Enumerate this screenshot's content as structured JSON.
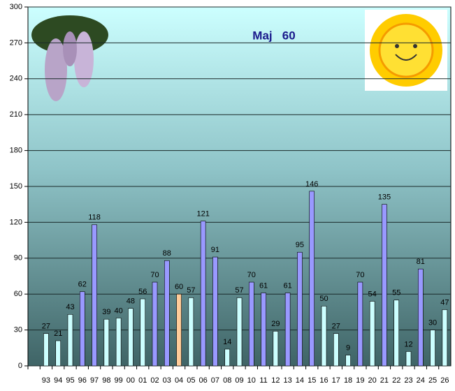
{
  "chart_data": {
    "type": "bar",
    "title": "Maj   60",
    "categories": [
      null,
      "93",
      "94",
      "95",
      "96",
      "97",
      "98",
      "99",
      "00",
      "01",
      "02",
      "03",
      "04",
      "05",
      "06",
      "07",
      "08",
      "09",
      "10",
      "11",
      "12",
      "13",
      "14",
      "15",
      "16",
      "17",
      "18",
      "19",
      "20",
      "21",
      "22",
      "23",
      "24",
      "25",
      "26"
    ],
    "values": [
      null,
      27,
      21,
      43,
      62,
      118,
      39,
      40,
      48,
      56,
      70,
      88,
      60,
      57,
      121,
      91,
      14,
      57,
      70,
      61,
      29,
      61,
      95,
      146,
      50,
      27,
      9,
      70,
      54,
      135,
      55,
      12,
      81,
      30,
      47
    ],
    "colors": [
      null,
      "#ccffff",
      "#ccffff",
      "#ccffff",
      "#9999ff",
      "#9999ff",
      "#ccffff",
      "#ccffff",
      "#ccffff",
      "#ccffff",
      "#9999ff",
      "#9999ff",
      "#ffcc99",
      "#ccffff",
      "#9999ff",
      "#9999ff",
      "#ccffff",
      "#ccffff",
      "#9999ff",
      "#9999ff",
      "#ccffff",
      "#9999ff",
      "#9999ff",
      "#9999ff",
      "#ccffff",
      "#ccffff",
      "#ccffff",
      "#9999ff",
      "#ccffff",
      "#9999ff",
      "#ccffff",
      "#ccffff",
      "#9999ff",
      "#ccffff",
      "#ccffff"
    ],
    "ylim": [
      0,
      300
    ],
    "yticks": [
      0,
      30,
      60,
      90,
      120,
      150,
      180,
      210,
      240,
      270,
      300
    ],
    "grid": true
  }
}
